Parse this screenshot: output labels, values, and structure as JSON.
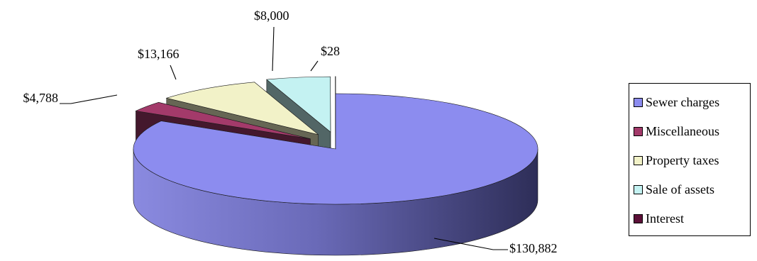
{
  "chart_data": {
    "type": "pie",
    "title": "",
    "categories": [
      "Sewer charges",
      "Miscellaneous",
      "Property taxes",
      "Sale of assets",
      "Interest"
    ],
    "values": [
      130882,
      4788,
      13166,
      8000,
      28
    ],
    "data_labels": [
      "$130,882",
      "$4,788",
      "$13,166",
      "$8,000",
      "$28"
    ],
    "colors": [
      "#8c8cef",
      "#a33a6a",
      "#f2f2c8",
      "#c4f2f2",
      "#5c1038"
    ],
    "legend_position": "right",
    "exploded": true,
    "three_d": true
  }
}
